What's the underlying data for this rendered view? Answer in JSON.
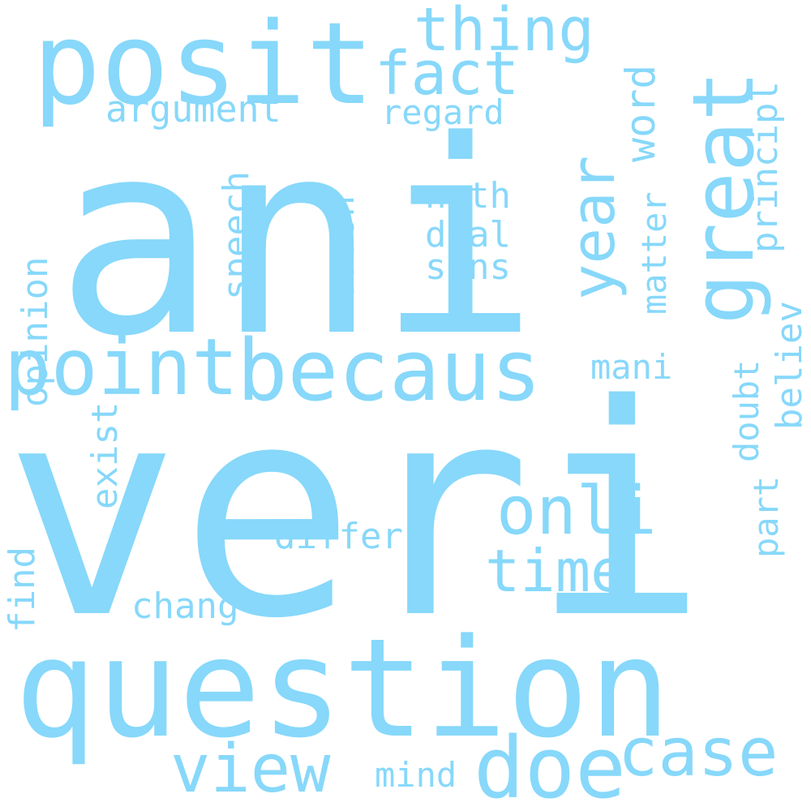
{
  "theme": {
    "word_color": "#87d8fa",
    "background": "#ffffff"
  },
  "words": {
    "ani": "ani",
    "veri": "veri",
    "question": "question",
    "posit": "posit",
    "becaus": "becaus",
    "point": "point",
    "great": "great",
    "year": "year",
    "thing": "thing",
    "fact": "fact",
    "argument": "argument",
    "regard": "regard",
    "word": "word",
    "onli": "onli",
    "time": "time",
    "view": "view",
    "doe": "doe",
    "case": "case",
    "noth": "noth",
    "deal": "deal",
    "sens": "sens",
    "speech": "speech",
    "reason": "reason",
    "opinion": "opinion",
    "principl": "principl",
    "matter": "matter",
    "mani": "mani",
    "doubt": "doubt",
    "believ": "believ",
    "part": "part",
    "exist": "exist",
    "differ": "differ",
    "chang": "chang",
    "find": "find",
    "mind": "mind"
  }
}
